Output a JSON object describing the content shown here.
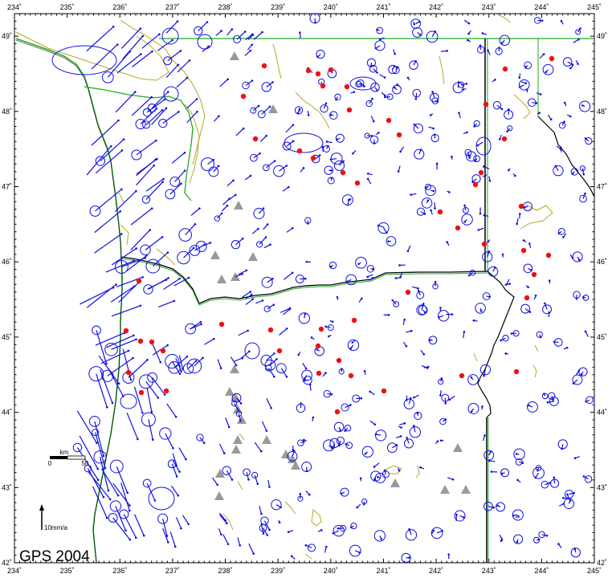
{
  "map": {
    "title": "GPS 2004",
    "lon_ticks": [
      "234˚",
      "235˚",
      "236˚",
      "237˚",
      "238˚",
      "239˚",
      "240˚",
      "241˚",
      "242˚",
      "243˚",
      "244˚",
      "245˚"
    ],
    "lat_ticks": [
      "42˚",
      "43˚",
      "44˚",
      "45˚",
      "46˚",
      "47˚",
      "48˚",
      "49˚"
    ],
    "lon_range": [
      234,
      245
    ],
    "lat_range": [
      42,
      49.3
    ],
    "scale_bar": {
      "title": "km",
      "start": "0",
      "end": "50"
    },
    "vector_scale": "10mm/a",
    "colors": {
      "vector": "#1010e0",
      "coast_border": "#22aa22",
      "lake": "#b5a82a",
      "volcano": "#999999",
      "site": "#ee1111"
    }
  }
}
